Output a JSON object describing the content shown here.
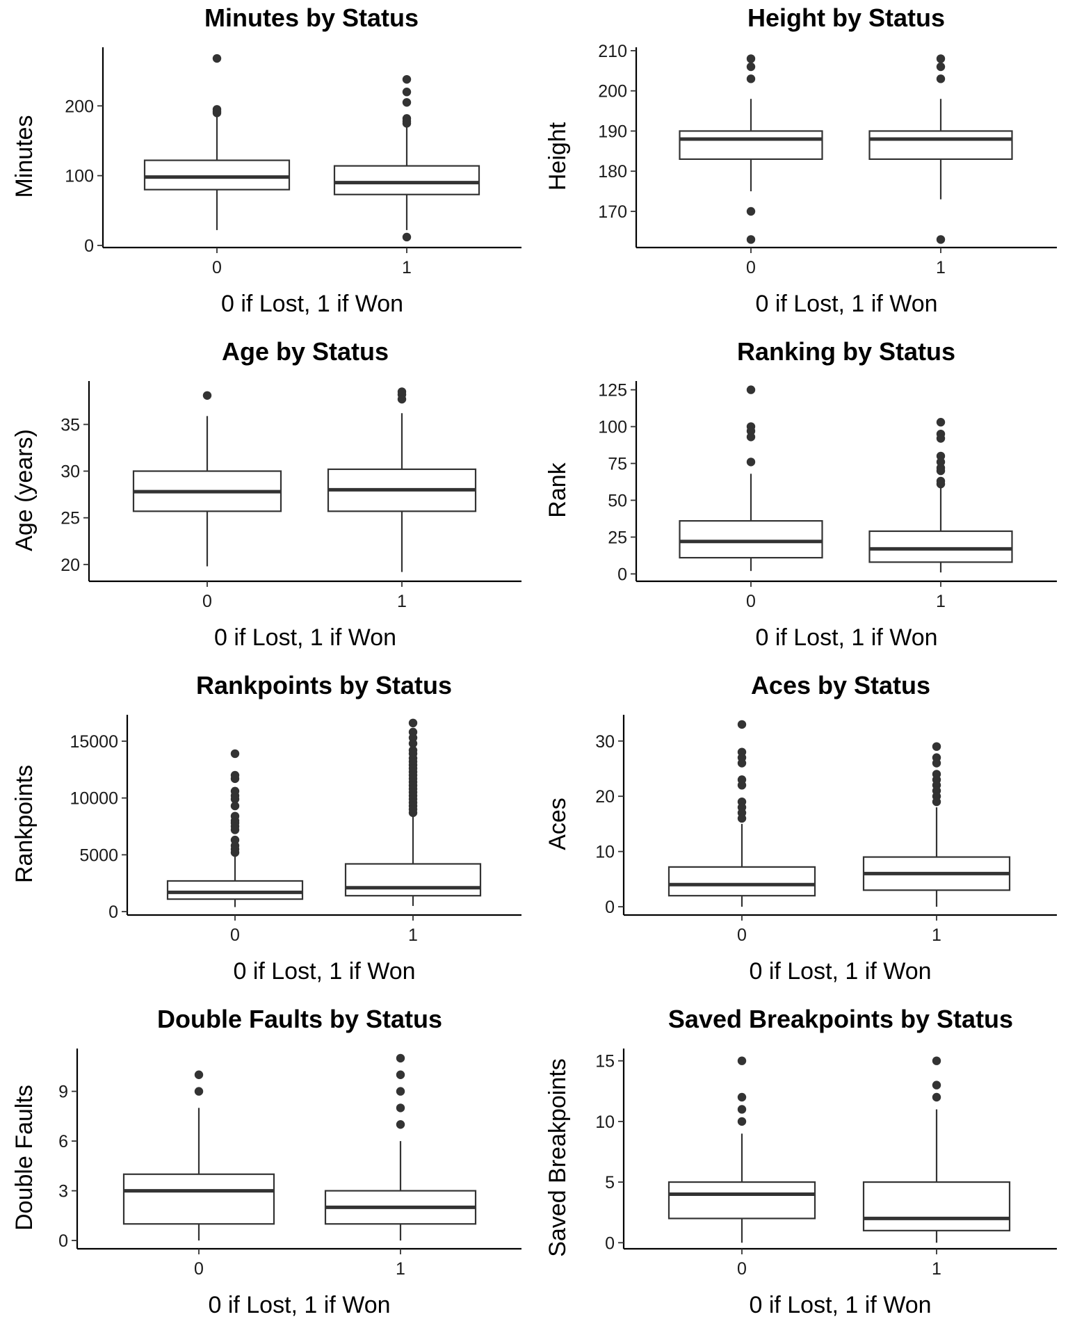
{
  "chart_data": [
    {
      "type": "box",
      "title": "Minutes by Status",
      "xlabel": "0 if Lost, 1 if Won",
      "ylabel": "Minutes",
      "categories": [
        "0",
        "1"
      ],
      "ylim": [
        -3,
        282
      ],
      "yticks": [
        0,
        100,
        200
      ],
      "boxes": [
        {
          "category": "0",
          "lower_whisker": 22,
          "q1": 80,
          "median": 98,
          "q3": 122,
          "upper_whisker": 188,
          "outliers": [
            268,
            195,
            192,
            190
          ]
        },
        {
          "category": "1",
          "lower_whisker": 22,
          "q1": 73,
          "median": 90,
          "q3": 114,
          "upper_whisker": 172,
          "outliers": [
            238,
            220,
            205,
            182,
            178,
            175,
            12
          ]
        }
      ]
    },
    {
      "type": "box",
      "title": "Height by Status",
      "xlabel": "0 if Lost, 1 if Won",
      "ylabel": "Height",
      "categories": [
        "0",
        "1"
      ],
      "ylim": [
        161,
        210.5
      ],
      "yticks": [
        170,
        180,
        190,
        200,
        210
      ],
      "boxes": [
        {
          "category": "0",
          "lower_whisker": 175,
          "q1": 183,
          "median": 188,
          "q3": 190,
          "upper_whisker": 198,
          "outliers": [
            208,
            206,
            203,
            170,
            163
          ]
        },
        {
          "category": "1",
          "lower_whisker": 173,
          "q1": 183,
          "median": 188,
          "q3": 190,
          "upper_whisker": 198,
          "outliers": [
            208,
            206,
            203,
            163
          ]
        }
      ]
    },
    {
      "type": "box",
      "title": "Age by Status",
      "xlabel": "0 if Lost, 1 if Won",
      "ylabel": "Age (years)",
      "categories": [
        "0",
        "1"
      ],
      "ylim": [
        18.2,
        39.5
      ],
      "yticks": [
        20,
        25,
        30,
        35
      ],
      "boxes": [
        {
          "category": "0",
          "lower_whisker": 19.8,
          "q1": 25.7,
          "median": 27.8,
          "q3": 30.0,
          "upper_whisker": 35.9,
          "outliers": [
            38.1
          ]
        },
        {
          "category": "1",
          "lower_whisker": 19.2,
          "q1": 25.7,
          "median": 28.0,
          "q3": 30.2,
          "upper_whisker": 36.2,
          "outliers": [
            38.5,
            38.2,
            37.7
          ]
        }
      ]
    },
    {
      "type": "box",
      "title": "Ranking by Status",
      "xlabel": "0 if Lost, 1 if Won",
      "ylabel": "Rank",
      "categories": [
        "0",
        "1"
      ],
      "ylim": [
        -5,
        130
      ],
      "yticks": [
        0,
        25,
        50,
        75,
        100,
        125
      ],
      "boxes": [
        {
          "category": "0",
          "lower_whisker": 2,
          "q1": 11,
          "median": 22,
          "q3": 36,
          "upper_whisker": 68,
          "outliers": [
            125,
            100,
            97,
            93,
            76
          ]
        },
        {
          "category": "1",
          "lower_whisker": 1,
          "q1": 8,
          "median": 17,
          "q3": 29,
          "upper_whisker": 60,
          "outliers": [
            103,
            95,
            92,
            80,
            76,
            72,
            70,
            63,
            61
          ]
        }
      ]
    },
    {
      "type": "box",
      "title": "Rankpoints by Status",
      "xlabel": "0 if Lost, 1 if Won",
      "ylabel": "Rankpoints",
      "categories": [
        "0",
        "1"
      ],
      "ylim": [
        -300,
        17200
      ],
      "yticks": [
        0,
        5000,
        10000,
        15000
      ],
      "boxes": [
        {
          "category": "0",
          "lower_whisker": 400,
          "q1": 1100,
          "median": 1700,
          "q3": 2700,
          "upper_whisker": 5000,
          "outliers": [
            13900,
            12000,
            11700,
            10600,
            10200,
            9900,
            9300,
            8400,
            8000,
            7800,
            7500,
            7200,
            6300,
            5800,
            5500,
            5200
          ]
        },
        {
          "category": "1",
          "lower_whisker": 500,
          "q1": 1400,
          "median": 2100,
          "q3": 4200,
          "upper_whisker": 8400,
          "outliers": [
            16600,
            15800,
            15300,
            14800,
            14200,
            13900,
            13500,
            13200,
            12900,
            12600,
            12300,
            12000,
            11700,
            11400,
            11100,
            10800,
            10500,
            10200,
            9900,
            9600,
            9300,
            9000,
            8700
          ]
        }
      ]
    },
    {
      "type": "box",
      "title": "Aces by Status",
      "xlabel": "0 if Lost, 1 if Won",
      "ylabel": "Aces",
      "categories": [
        "0",
        "1"
      ],
      "ylim": [
        -1.5,
        34.5
      ],
      "yticks": [
        0,
        10,
        20,
        30
      ],
      "boxes": [
        {
          "category": "0",
          "lower_whisker": 0,
          "q1": 2,
          "median": 4,
          "q3": 7.2,
          "upper_whisker": 15,
          "outliers": [
            33,
            28,
            27,
            26,
            23,
            22,
            19,
            18,
            17,
            16
          ]
        },
        {
          "category": "1",
          "lower_whisker": 0,
          "q1": 3,
          "median": 6,
          "q3": 9,
          "upper_whisker": 18,
          "outliers": [
            29,
            27,
            26,
            24,
            23,
            22,
            21,
            20,
            19
          ]
        }
      ]
    },
    {
      "type": "box",
      "title": "Double Faults by Status",
      "xlabel": "0 if Lost, 1 if Won",
      "ylabel": "Double Faults",
      "categories": [
        "0",
        "1"
      ],
      "ylim": [
        -0.5,
        11.5
      ],
      "yticks": [
        0,
        3,
        6,
        9
      ],
      "boxes": [
        {
          "category": "0",
          "lower_whisker": 0,
          "q1": 1,
          "median": 3,
          "q3": 4,
          "upper_whisker": 8,
          "outliers": [
            10,
            9
          ]
        },
        {
          "category": "1",
          "lower_whisker": 0,
          "q1": 1,
          "median": 2,
          "q3": 3,
          "upper_whisker": 6,
          "outliers": [
            11,
            10,
            9,
            8,
            7
          ]
        }
      ]
    },
    {
      "type": "box",
      "title": "Saved Breakpoints by Status",
      "xlabel": "0 if Lost, 1 if Won",
      "ylabel": "Saved Breakpoints",
      "categories": [
        "0",
        "1"
      ],
      "ylim": [
        -0.5,
        15.9
      ],
      "yticks": [
        0,
        5,
        10,
        15
      ],
      "boxes": [
        {
          "category": "0",
          "lower_whisker": 0,
          "q1": 2,
          "median": 4,
          "q3": 5,
          "upper_whisker": 9,
          "outliers": [
            15,
            12,
            11,
            10
          ]
        },
        {
          "category": "1",
          "lower_whisker": 0,
          "q1": 1,
          "median": 2,
          "q3": 5,
          "upper_whisker": 11,
          "outliers": [
            15,
            13,
            12
          ]
        }
      ]
    }
  ]
}
